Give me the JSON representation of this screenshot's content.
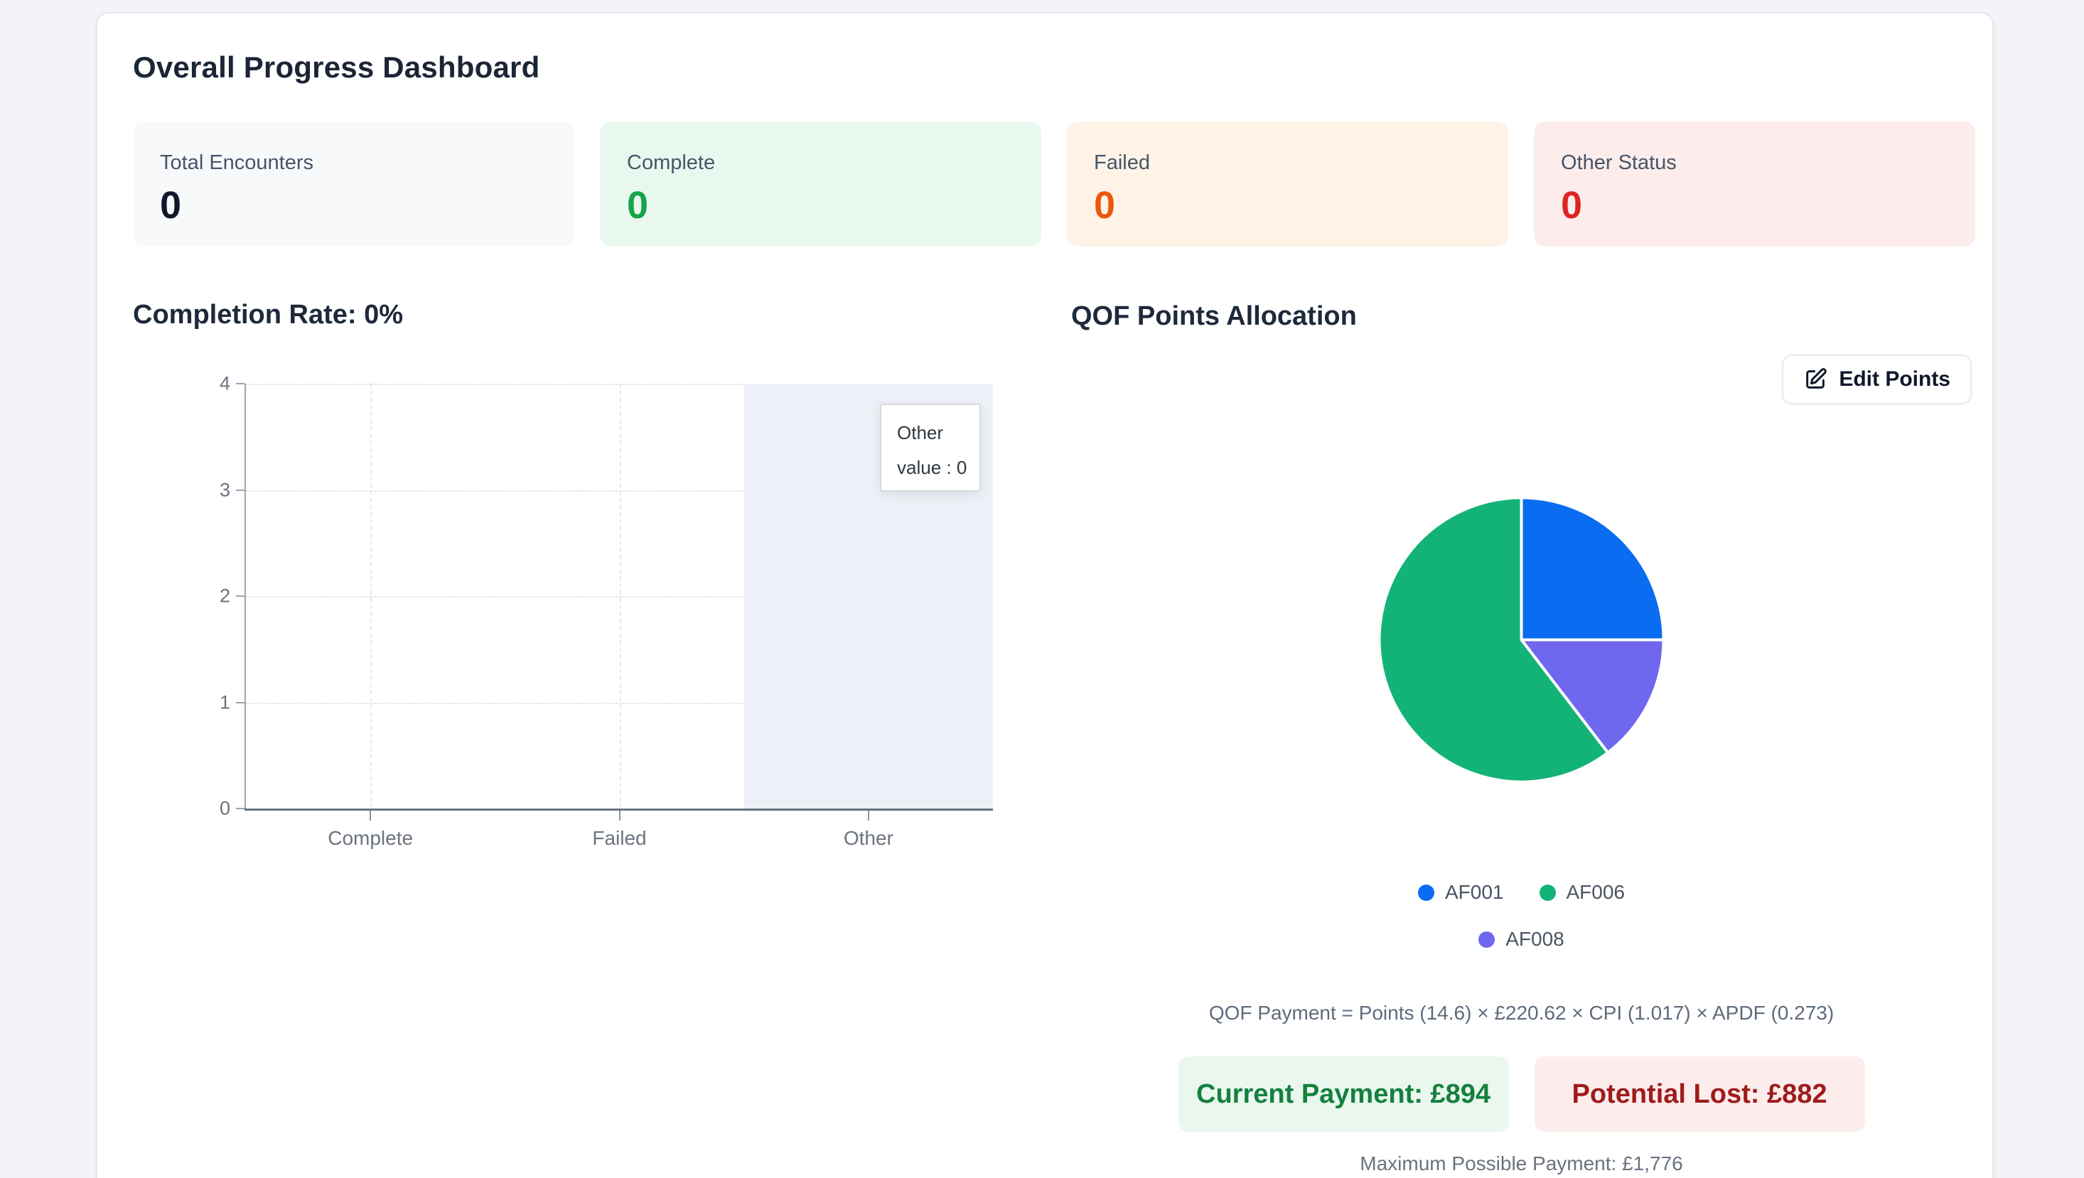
{
  "page": {
    "background": "#f2f4f7"
  },
  "dashboard": {
    "title": "Overall Progress Dashboard",
    "stats": [
      {
        "label": "Total Encounters",
        "value": "0",
        "bg": "#f8f9fb",
        "value_color": "#0f172a"
      },
      {
        "label": "Complete",
        "value": "0",
        "bg": "#e9f8ef",
        "value_color": "#16a34a"
      },
      {
        "label": "Failed",
        "value": "0",
        "bg": "#fef3e6",
        "value_color": "#ea580c"
      },
      {
        "label": "Other Status",
        "value": "0",
        "bg": "#fdecec",
        "value_color": "#dc2626"
      }
    ],
    "completion_heading": "Completion Rate: 0%",
    "qof": {
      "heading": "QOF Points Allocation",
      "edit_button_label": "Edit Points",
      "formula": "QOF Payment = Points (14.6) × £220.62 × CPI (1.017) × APDF (0.273)",
      "current_payment": "Current Payment: £894",
      "potential_lost": "Potential Lost: £882",
      "max_payment": "Maximum Possible Payment: £1,776",
      "current_payment_colors": {
        "bg": "#e9f7ee",
        "text": "#15803d"
      },
      "potential_lost_colors": {
        "bg": "#fdecec",
        "text": "#9f1b1b"
      }
    }
  },
  "chart_data": [
    {
      "type": "bar",
      "title": "Completion Rate: 0%",
      "categories": [
        "Complete",
        "Failed",
        "Other"
      ],
      "values": [
        0,
        0,
        0
      ],
      "xlabel": "",
      "ylabel": "",
      "ylim": [
        0,
        4
      ],
      "y_ticks": [
        0,
        1,
        2,
        3,
        4
      ],
      "grid": "horizontal dotted lines + vertical dashed lines at category centers",
      "legend_position": "none",
      "highlight_category": "Other",
      "tooltip": {
        "title": "Other",
        "text": "value : 0"
      }
    },
    {
      "type": "pie",
      "title": "QOF Points Allocation",
      "slices": [
        {
          "label": "AF001",
          "percent": 25.0,
          "color": "#0a6cf0"
        },
        {
          "label": "AF008",
          "percent": 14.6,
          "color": "#6f68ef"
        },
        {
          "label": "AF006",
          "percent": 60.4,
          "color": "#13b377"
        }
      ],
      "start_angle_deg": 0,
      "direction": "clockwise from top",
      "legend": [
        "AF001",
        "AF006",
        "AF008"
      ],
      "legend_position": "bottom"
    }
  ]
}
